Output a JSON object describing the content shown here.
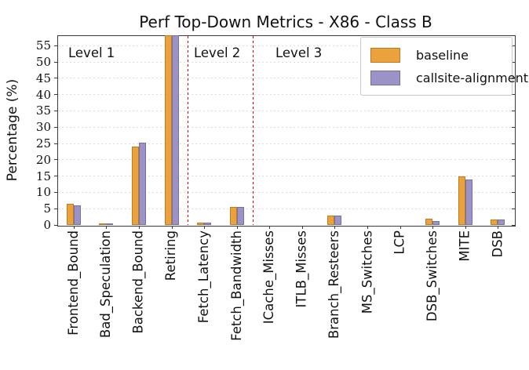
{
  "chart_data": {
    "type": "bar",
    "title": "Perf Top-Down Metrics - X86 - Class B",
    "xlabel": "",
    "ylabel": "Percentage (%)",
    "ylim": [
      0,
      58.2
    ],
    "yticks": [
      0,
      5,
      10,
      15,
      20,
      25,
      30,
      35,
      40,
      45,
      50,
      55
    ],
    "grid": "horizontal-dotted",
    "categories": [
      "Frontend_Bound",
      "Bad_Speculation",
      "Backend_Bound",
      "Retiring",
      "Fetch_Latency",
      "Fetch_Bandwidth",
      "ICache_Misses",
      "ITLB_Misses",
      "Branch_Resteers",
      "MS_Switches",
      "LCP",
      "DSB_Switches",
      "MITE",
      "DSB"
    ],
    "series": [
      {
        "name": "baseline",
        "fill_color": "#ECA23C",
        "edge_color": "#bf7b23",
        "values": [
          6.5,
          0.4,
          24.0,
          60.0,
          0.8,
          5.6,
          0.0,
          0.0,
          2.8,
          0.0,
          0.0,
          2.0,
          15.0,
          1.6
        ]
      },
      {
        "name": "callsite-alignment",
        "fill_color": "#9B92C6",
        "edge_color": "#77709f",
        "values": [
          6.0,
          0.4,
          25.3,
          60.0,
          0.7,
          5.5,
          0.0,
          0.0,
          2.9,
          0.0,
          0.0,
          1.2,
          14.0,
          1.8
        ]
      }
    ],
    "group_labels": [
      {
        "label": "Level 1",
        "span": [
          0,
          3
        ]
      },
      {
        "label": "Level 2",
        "span": [
          4,
          5
        ]
      },
      {
        "label": "Level 3",
        "span": [
          6,
          13
        ]
      }
    ],
    "dividers": {
      "after_indices": [
        3,
        5
      ],
      "color": "#e10000",
      "style": "dashed"
    },
    "legend": {
      "position": "top-right",
      "entries": [
        "baseline",
        "callsite-alignment"
      ]
    },
    "note": "Retiring bars exceed the visible y-range and are clipped at the plot top"
  },
  "colors": {
    "divider_red": "#e10000",
    "gridline": "#dcdcdc",
    "axis_frame": "#3a3a3a",
    "background": "#ffffff"
  }
}
